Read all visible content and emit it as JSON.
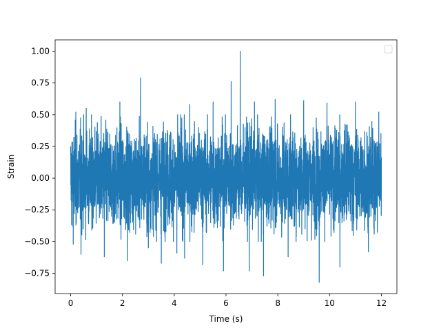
{
  "chart_data": {
    "type": "line",
    "title": "",
    "xlabel": "Time (s)",
    "ylabel": "Strain",
    "xlim": [
      -0.6,
      12.6
    ],
    "ylim": [
      -0.91,
      1.09
    ],
    "grid": false,
    "legend": {
      "position": "top-right",
      "entries": []
    },
    "xticks": [
      0,
      2,
      4,
      6,
      8,
      10,
      12
    ],
    "xtick_labels": [
      "0",
      "2",
      "4",
      "6",
      "8",
      "10",
      "12"
    ],
    "yticks": [
      -0.75,
      -0.5,
      -0.25,
      0.0,
      0.25,
      0.5,
      0.75,
      1.0
    ],
    "ytick_labels": [
      "−0.75",
      "−0.50",
      "−0.25",
      "0.00",
      "0.25",
      "0.50",
      "0.75",
      "1.00"
    ],
    "series": [
      {
        "color": "#1f77b4",
        "x_range": [
          0,
          12
        ],
        "noise_amplitude": 0.45,
        "peaks": [
          {
            "x": 0.1,
            "y": -0.52
          },
          {
            "x": 0.2,
            "y": 0.52
          },
          {
            "x": 0.4,
            "y": -0.6
          },
          {
            "x": 0.6,
            "y": 0.55
          },
          {
            "x": 1.3,
            "y": -0.62
          },
          {
            "x": 1.9,
            "y": 0.6
          },
          {
            "x": 2.2,
            "y": -0.65
          },
          {
            "x": 2.7,
            "y": 0.79
          },
          {
            "x": 3.0,
            "y": -0.55
          },
          {
            "x": 3.5,
            "y": -0.67
          },
          {
            "x": 4.1,
            "y": -0.59
          },
          {
            "x": 4.4,
            "y": -0.63
          },
          {
            "x": 4.6,
            "y": 0.58
          },
          {
            "x": 5.1,
            "y": -0.68
          },
          {
            "x": 5.5,
            "y": 0.6
          },
          {
            "x": 5.9,
            "y": -0.73
          },
          {
            "x": 6.2,
            "y": 0.76
          },
          {
            "x": 6.55,
            "y": 1.0
          },
          {
            "x": 6.9,
            "y": -0.73
          },
          {
            "x": 7.1,
            "y": 0.6
          },
          {
            "x": 7.45,
            "y": -0.77
          },
          {
            "x": 7.9,
            "y": 0.62
          },
          {
            "x": 8.4,
            "y": -0.62
          },
          {
            "x": 9.0,
            "y": 0.61
          },
          {
            "x": 9.6,
            "y": -0.82
          },
          {
            "x": 9.9,
            "y": 0.59
          },
          {
            "x": 10.4,
            "y": -0.7
          },
          {
            "x": 11.0,
            "y": 0.6
          },
          {
            "x": 11.5,
            "y": -0.58
          },
          {
            "x": 11.9,
            "y": 0.52
          }
        ]
      }
    ]
  }
}
